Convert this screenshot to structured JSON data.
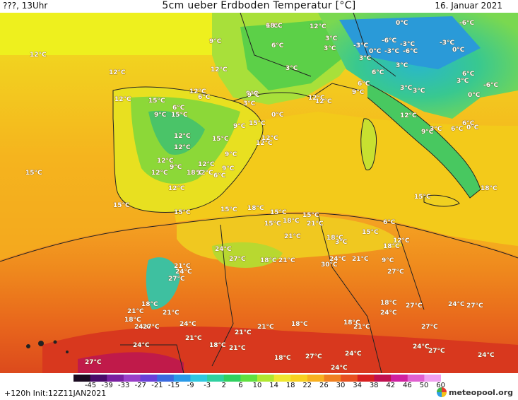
{
  "header": {
    "left": "???, 13Uhr",
    "title": "5cm ueber Erdboden Temperatur [°C]",
    "date": "16. Januar 2021"
  },
  "footer": {
    "init": "+120h  Init:12Z11JAN2021",
    "logo_text": "meteopool.org"
  },
  "legend": {
    "ticks": [
      "-45",
      "-39",
      "-33",
      "-27",
      "-21",
      "-15",
      "-9",
      "-3",
      "2",
      "6",
      "10",
      "14",
      "18",
      "22",
      "26",
      "30",
      "34",
      "38",
      "42",
      "46",
      "50",
      "60"
    ],
    "colors": [
      "#1a0a20",
      "#4a0a6a",
      "#7a1fa0",
      "#9a3fc8",
      "#6a3fd8",
      "#3a6ae0",
      "#2a9ae8",
      "#30c8e0",
      "#30d0a0",
      "#30d060",
      "#60e040",
      "#b0e830",
      "#f0e830",
      "#f8d020",
      "#f8b020",
      "#f08020",
      "#e85020",
      "#d82020",
      "#c01050",
      "#d020a0",
      "#e060d0",
      "#f0a0f0"
    ]
  },
  "map": {
    "water": "#f3ca1a",
    "sea_labels": [
      {
        "text": "12°C"
      },
      {
        "text": "12°C"
      },
      {
        "text": "15°C"
      },
      {
        "text": "15°C"
      },
      {
        "text": "12°C"
      },
      {
        "text": "12°C"
      },
      {
        "text": "9°C"
      },
      {
        "text": "12°C"
      },
      {
        "text": "12°C"
      },
      {
        "text": "15°C"
      },
      {
        "text": "15°C"
      },
      {
        "text": "15°C"
      },
      {
        "text": "18°C"
      },
      {
        "text": "15°C"
      }
    ],
    "land_labels": [
      {
        "text": "6°C"
      },
      {
        "text": "6°C"
      },
      {
        "text": "3°C"
      },
      {
        "text": "3°C"
      },
      {
        "text": "0°C"
      },
      {
        "text": "-3°C"
      },
      {
        "text": "-6°C"
      },
      {
        "text": "-6°C"
      },
      {
        "text": "-3°C"
      },
      {
        "text": "-6°C"
      },
      {
        "text": "-3°C"
      },
      {
        "text": "0°C"
      },
      {
        "text": "3°C"
      },
      {
        "text": "0°C"
      },
      {
        "text": "-3°C"
      },
      {
        "text": "6°C"
      },
      {
        "text": "3°C"
      },
      {
        "text": "3°C"
      },
      {
        "text": "-6°C"
      },
      {
        "text": "0°C"
      },
      {
        "text": "3°C"
      },
      {
        "text": "6°C"
      },
      {
        "text": "9°C"
      },
      {
        "text": "3°C"
      },
      {
        "text": "3°C"
      },
      {
        "text": "6°C"
      },
      {
        "text": "12°C"
      },
      {
        "text": "9°C"
      },
      {
        "text": "3°C"
      },
      {
        "text": "6°C"
      },
      {
        "text": "0°C"
      },
      {
        "text": "6°C"
      },
      {
        "text": "9°C"
      },
      {
        "text": "12°C"
      },
      {
        "text": "6°C"
      },
      {
        "text": "9°C"
      },
      {
        "text": "12°C"
      },
      {
        "text": "6°C"
      },
      {
        "text": "3°C"
      },
      {
        "text": "12°C"
      },
      {
        "text": "9°C"
      },
      {
        "text": "12°C"
      },
      {
        "text": "15°C"
      },
      {
        "text": "9°C"
      },
      {
        "text": "15°C"
      },
      {
        "text": "15°C"
      },
      {
        "text": "12°C"
      },
      {
        "text": "9°C"
      },
      {
        "text": "12°C"
      },
      {
        "text": "15°C"
      },
      {
        "text": "12°C"
      },
      {
        "text": "9°C"
      },
      {
        "text": "9°C"
      },
      {
        "text": "12°C"
      },
      {
        "text": "6°C"
      },
      {
        "text": "0°C"
      },
      {
        "text": "12°C"
      },
      {
        "text": "12°C"
      },
      {
        "text": "18°C"
      },
      {
        "text": "12°C"
      },
      {
        "text": "15°C"
      },
      {
        "text": "18°C"
      },
      {
        "text": "15°C"
      },
      {
        "text": "18°C"
      },
      {
        "text": "21°C"
      },
      {
        "text": "21°C"
      },
      {
        "text": "18°C"
      },
      {
        "text": "3°C"
      },
      {
        "text": "15°C"
      },
      {
        "text": "6°C"
      },
      {
        "text": "9°C"
      },
      {
        "text": "12°C"
      },
      {
        "text": "18°C"
      },
      {
        "text": "24°C"
      },
      {
        "text": "21°C"
      },
      {
        "text": "27°C"
      },
      {
        "text": "30°C"
      },
      {
        "text": "27°C"
      },
      {
        "text": "24°C"
      },
      {
        "text": "21°C"
      },
      {
        "text": "18°C"
      },
      {
        "text": "21°C"
      },
      {
        "text": "24°C"
      },
      {
        "text": "27°C"
      },
      {
        "text": "18°C"
      },
      {
        "text": "21°C"
      },
      {
        "text": "21°C"
      },
      {
        "text": "18°C"
      },
      {
        "text": "24°C"
      },
      {
        "text": "27°C"
      },
      {
        "text": "24°C"
      },
      {
        "text": "21°C"
      },
      {
        "text": "18°C"
      },
      {
        "text": "21°C"
      },
      {
        "text": "21°C"
      },
      {
        "text": "18°C"
      },
      {
        "text": "18°C"
      },
      {
        "text": "21°C"
      },
      {
        "text": "18°C"
      },
      {
        "text": "24°C"
      },
      {
        "text": "27°C"
      },
      {
        "text": "24°C"
      },
      {
        "text": "27°C"
      },
      {
        "text": "24°C"
      },
      {
        "text": "27°C"
      },
      {
        "text": "24°C"
      },
      {
        "text": "27°C"
      },
      {
        "text": "24°C"
      },
      {
        "text": "24°C"
      },
      {
        "text": "27°C"
      },
      {
        "text": "18°C"
      },
      {
        "text": "21°C"
      },
      {
        "text": "24°C"
      },
      {
        "text": "27°C"
      },
      {
        "text": "18°C"
      }
    ]
  }
}
